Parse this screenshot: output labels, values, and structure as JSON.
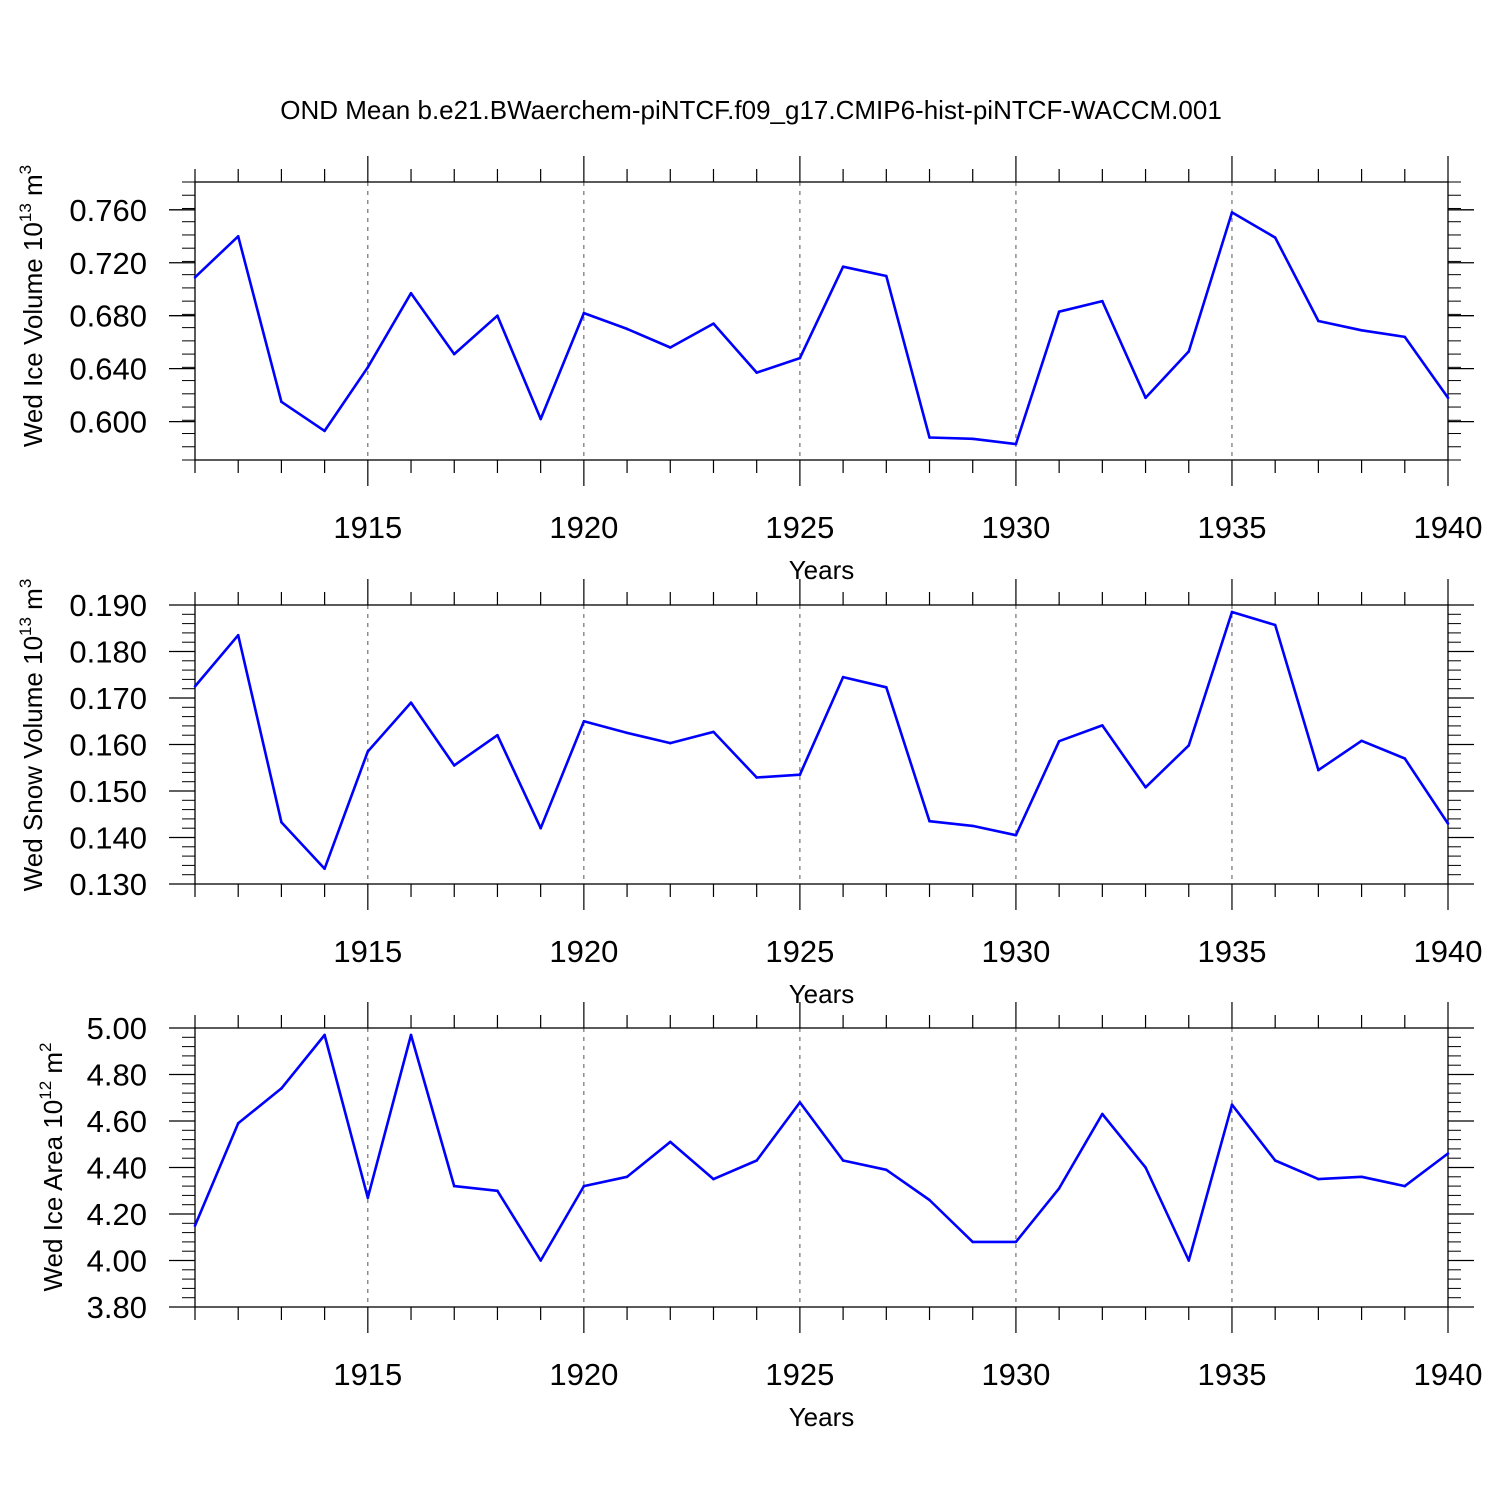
{
  "title": "OND Mean b.e21.BWaerchem-piNTCF.f09_g17.CMIP6-hist-piNTCF-WACCM.001",
  "colors": {
    "line": "#0000ff",
    "axis": "#000000",
    "grid": "#555555"
  },
  "chart_data": [
    {
      "type": "line",
      "ylabel_main": "Wed Ice Volume 10",
      "ylabel_exp": "13",
      "ylabel_unit": " m",
      "ylabel_unit_exp": "3",
      "xlabel": "Years",
      "xlim": [
        1911,
        1940
      ],
      "ylim": [
        0.571,
        0.781
      ],
      "yticks": [
        0.6,
        0.64,
        0.68,
        0.72,
        0.76
      ],
      "ytick_labels": [
        "0.600",
        "0.640",
        "0.680",
        "0.720",
        "0.760"
      ],
      "yminor_step": 0.01,
      "xticks": [
        1915,
        1920,
        1925,
        1930,
        1935,
        1940
      ],
      "xtick_labels": [
        "1915",
        "1920",
        "1925",
        "1930",
        "1935",
        "1940"
      ],
      "grid": "vertical dashed at major x ticks",
      "x": [
        1911,
        1912,
        1913,
        1914,
        1915,
        1916,
        1917,
        1918,
        1919,
        1920,
        1921,
        1922,
        1923,
        1924,
        1925,
        1926,
        1927,
        1928,
        1929,
        1930,
        1931,
        1932,
        1933,
        1934,
        1935,
        1936,
        1937,
        1938,
        1939,
        1940
      ],
      "values": [
        0.709,
        0.74,
        0.615,
        0.593,
        0.641,
        0.697,
        0.651,
        0.68,
        0.602,
        0.682,
        0.67,
        0.656,
        0.674,
        0.637,
        0.648,
        0.717,
        0.71,
        0.588,
        0.587,
        0.583,
        0.683,
        0.691,
        0.618,
        0.653,
        0.758,
        0.739,
        0.676,
        0.669,
        0.664,
        0.618
      ]
    },
    {
      "type": "line",
      "ylabel_main": "Wed Snow Volume 10",
      "ylabel_exp": "13",
      "ylabel_unit": " m",
      "ylabel_unit_exp": "3",
      "xlabel": "Years",
      "xlim": [
        1911,
        1940
      ],
      "ylim": [
        0.13,
        0.19
      ],
      "yticks": [
        0.13,
        0.14,
        0.15,
        0.16,
        0.17,
        0.18,
        0.19
      ],
      "ytick_labels": [
        "0.130",
        "0.140",
        "0.150",
        "0.160",
        "0.170",
        "0.180",
        "0.190"
      ],
      "yminor_step": 0.002,
      "xticks": [
        1915,
        1920,
        1925,
        1930,
        1935,
        1940
      ],
      "xtick_labels": [
        "1915",
        "1920",
        "1925",
        "1930",
        "1935",
        "1940"
      ],
      "grid": "vertical dashed at major x ticks",
      "x": [
        1911,
        1912,
        1913,
        1914,
        1915,
        1916,
        1917,
        1918,
        1919,
        1920,
        1921,
        1922,
        1923,
        1924,
        1925,
        1926,
        1927,
        1928,
        1929,
        1930,
        1931,
        1932,
        1933,
        1934,
        1935,
        1936,
        1937,
        1938,
        1939,
        1940
      ],
      "values": [
        0.1725,
        0.1835,
        0.1433,
        0.1333,
        0.1585,
        0.169,
        0.1555,
        0.162,
        0.142,
        0.165,
        0.1625,
        0.1603,
        0.1627,
        0.1529,
        0.1535,
        0.1745,
        0.1723,
        0.1435,
        0.1425,
        0.1405,
        0.1607,
        0.1641,
        0.1508,
        0.1598,
        0.1885,
        0.1857,
        0.1545,
        0.1608,
        0.157,
        0.143
      ]
    },
    {
      "type": "line",
      "ylabel_main": "Wed Ice Area 10",
      "ylabel_exp": "12",
      "ylabel_unit": " m",
      "ylabel_unit_exp": "2",
      "xlabel": "Years",
      "xlim": [
        1911,
        1940
      ],
      "ylim": [
        3.8,
        5.0
      ],
      "yticks": [
        3.8,
        4.0,
        4.2,
        4.4,
        4.6,
        4.8,
        5.0
      ],
      "ytick_labels": [
        "3.80",
        "4.00",
        "4.20",
        "4.40",
        "4.60",
        "4.80",
        "5.00"
      ],
      "yminor_step": 0.04,
      "xticks": [
        1915,
        1920,
        1925,
        1930,
        1935,
        1940
      ],
      "xtick_labels": [
        "1915",
        "1920",
        "1925",
        "1930",
        "1935",
        "1940"
      ],
      "grid": "vertical dashed at major x ticks",
      "x": [
        1911,
        1912,
        1913,
        1914,
        1915,
        1916,
        1917,
        1918,
        1919,
        1920,
        1921,
        1922,
        1923,
        1924,
        1925,
        1926,
        1927,
        1928,
        1929,
        1930,
        1931,
        1932,
        1933,
        1934,
        1935,
        1936,
        1937,
        1938,
        1939,
        1940
      ],
      "values": [
        4.15,
        4.59,
        4.74,
        4.97,
        4.27,
        4.97,
        4.32,
        4.3,
        4.0,
        4.32,
        4.36,
        4.51,
        4.35,
        4.43,
        4.68,
        4.43,
        4.39,
        4.26,
        4.08,
        4.08,
        4.31,
        4.63,
        4.4,
        4.0,
        4.67,
        4.43,
        4.35,
        4.36,
        4.32,
        4.46
      ]
    }
  ]
}
